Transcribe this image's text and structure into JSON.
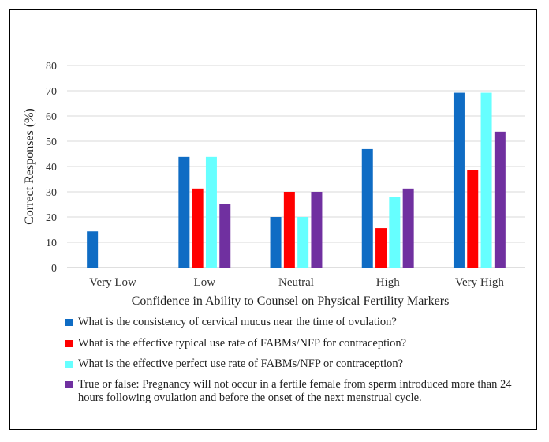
{
  "chart_data": {
    "type": "bar",
    "title": "",
    "xlabel": "Confidence in Ability to Counsel on Physical Fertility Markers",
    "ylabel": "Correct Responses (%)",
    "ylim": [
      0,
      80
    ],
    "yticks": [
      "0",
      "10",
      "20",
      "30",
      "40",
      "50",
      "60",
      "70",
      "80"
    ],
    "grid": true,
    "legend_position": "bottom",
    "categories": [
      "Very Low",
      "Low",
      "Neutral",
      "High",
      "Very High"
    ],
    "series": [
      {
        "name": "What is the consistency of cervical mucus near the time of ovulation?",
        "color": "#0F6CC4",
        "values": [
          14.3,
          43.8,
          20,
          46.9,
          69.2
        ]
      },
      {
        "name": "What is the effective typical use rate of FABMs/NFP for contraception?",
        "color": "#FF0000",
        "values": [
          0,
          31.3,
          30,
          15.6,
          38.5
        ]
      },
      {
        "name": "What is the effective perfect use rate of FABMs/NFP or contraception?",
        "color": "#66FFFF",
        "values": [
          0,
          43.8,
          20,
          28.1,
          69.2
        ]
      },
      {
        "name": "True or false: Pregnancy will not occur in a fertile female from sperm introduced more than 24 hours following ovulation and before the onset of the next menstrual cycle.",
        "color": "#7030A0",
        "values": [
          0,
          25,
          30,
          31.3,
          53.8
        ]
      }
    ]
  }
}
